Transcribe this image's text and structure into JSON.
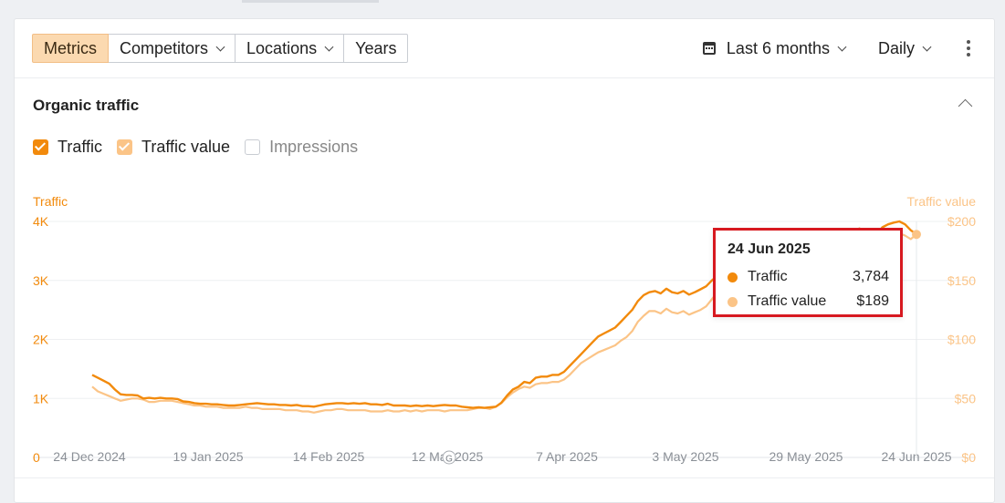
{
  "toolbar": {
    "tabs": [
      {
        "label": "Metrics",
        "active": true,
        "dropdown": false
      },
      {
        "label": "Competitors",
        "active": false,
        "dropdown": true
      },
      {
        "label": "Locations",
        "active": false,
        "dropdown": true
      },
      {
        "label": "Years",
        "active": false,
        "dropdown": false
      }
    ],
    "period": "Last 6 months",
    "granularity": "Daily",
    "period_icon": "calendar-icon",
    "more_icon": "more-vertical-icon"
  },
  "section": {
    "title": "Organic traffic",
    "collapse_icon": "chevron-up-icon"
  },
  "legend": [
    {
      "label": "Traffic",
      "checked": true,
      "color": "#f28a0c"
    },
    {
      "label": "Traffic value",
      "checked": true,
      "color": "#fbc487"
    },
    {
      "label": "Impressions",
      "checked": false,
      "color": "#c8ccd2"
    }
  ],
  "tooltip": {
    "date": "24 Jun 2025",
    "rows": [
      {
        "label": "Traffic",
        "value": "3,784",
        "color": "#f28a0c"
      },
      {
        "label": "Traffic value",
        "value": "$189",
        "color": "#fbc487"
      }
    ]
  },
  "chart_data": {
    "type": "line",
    "ylabel": "Traffic",
    "y2label": "Traffic value",
    "ylim": [
      0,
      4000
    ],
    "y2lim": [
      0,
      200
    ],
    "y_ticks": [
      "0",
      "1K",
      "2K",
      "3K",
      "4K"
    ],
    "y2_ticks": [
      "$0",
      "$50",
      "$100",
      "$150",
      "$200"
    ],
    "x_ticks": [
      "24 Dec 2024",
      "19 Jan 2025",
      "14 Feb 2025",
      "12 Mar 2025",
      "7 Apr 2025",
      "3 May 2025",
      "29 May 2025",
      "24 Jun 2025"
    ],
    "annotation": "G",
    "grid": true,
    "series": [
      {
        "name": "Traffic",
        "color": "#f28a0c",
        "axis": "left",
        "values": [
          1400,
          1350,
          1300,
          1250,
          1150,
          1070,
          1060,
          1060,
          1050,
          1000,
          1010,
          1000,
          1010,
          1000,
          1000,
          990,
          950,
          940,
          920,
          910,
          910,
          900,
          900,
          890,
          880,
          880,
          890,
          900,
          910,
          920,
          910,
          900,
          900,
          890,
          890,
          880,
          890,
          870,
          870,
          860,
          880,
          900,
          910,
          920,
          920,
          910,
          920,
          910,
          920,
          900,
          900,
          890,
          910,
          880,
          880,
          880,
          870,
          880,
          870,
          880,
          870,
          880,
          890,
          880,
          880,
          860,
          850,
          840,
          850,
          840,
          850,
          860,
          930,
          1050,
          1150,
          1200,
          1280,
          1260,
          1350,
          1370,
          1370,
          1400,
          1400,
          1450,
          1550,
          1650,
          1750,
          1850,
          1950,
          2050,
          2100,
          2150,
          2200,
          2300,
          2400,
          2500,
          2650,
          2750,
          2800,
          2820,
          2780,
          2860,
          2800,
          2780,
          2820,
          2760,
          2800,
          2850,
          2900,
          3000,
          3080,
          3090,
          3110,
          3150,
          3190,
          3210,
          3100,
          3050,
          3100,
          3150,
          3200,
          3250,
          3300,
          3330,
          3350,
          3400,
          3450,
          3500,
          3450,
          3500,
          3600,
          3700,
          3750,
          3800,
          3850,
          3880,
          3800,
          3700,
          3784,
          3900,
          3950,
          3980,
          4000,
          3950,
          3850,
          3784
        ]
      },
      {
        "name": "Traffic value",
        "color": "#fbc487",
        "axis": "right",
        "values": [
          60,
          56,
          54,
          52,
          50,
          48,
          49,
          50,
          50,
          49,
          47,
          47,
          48,
          48,
          48,
          47,
          46,
          45,
          44,
          44,
          43,
          43,
          43,
          42,
          42,
          42,
          42,
          43,
          42,
          42,
          41,
          41,
          41,
          41,
          40,
          40,
          40,
          39,
          39,
          38,
          39,
          40,
          40,
          41,
          41,
          40,
          40,
          40,
          40,
          39,
          39,
          39,
          40,
          39,
          39,
          40,
          39,
          40,
          39,
          40,
          40,
          40,
          39,
          40,
          40,
          40,
          40,
          41,
          42,
          42,
          41,
          43,
          46,
          51,
          55,
          58,
          60,
          59,
          62,
          63,
          63,
          64,
          64,
          66,
          70,
          75,
          80,
          83,
          86,
          89,
          91,
          93,
          95,
          99,
          102,
          107,
          115,
          120,
          124,
          124,
          122,
          126,
          123,
          122,
          124,
          121,
          123,
          125,
          128,
          134,
          140,
          141,
          142,
          144,
          146,
          147,
          142,
          140,
          143,
          146,
          148,
          151,
          154,
          156,
          157,
          159,
          162,
          164,
          161,
          163,
          168,
          172,
          175,
          177,
          180,
          182,
          178,
          174,
          176,
          183,
          186,
          188,
          190,
          188,
          185,
          189
        ]
      }
    ]
  }
}
